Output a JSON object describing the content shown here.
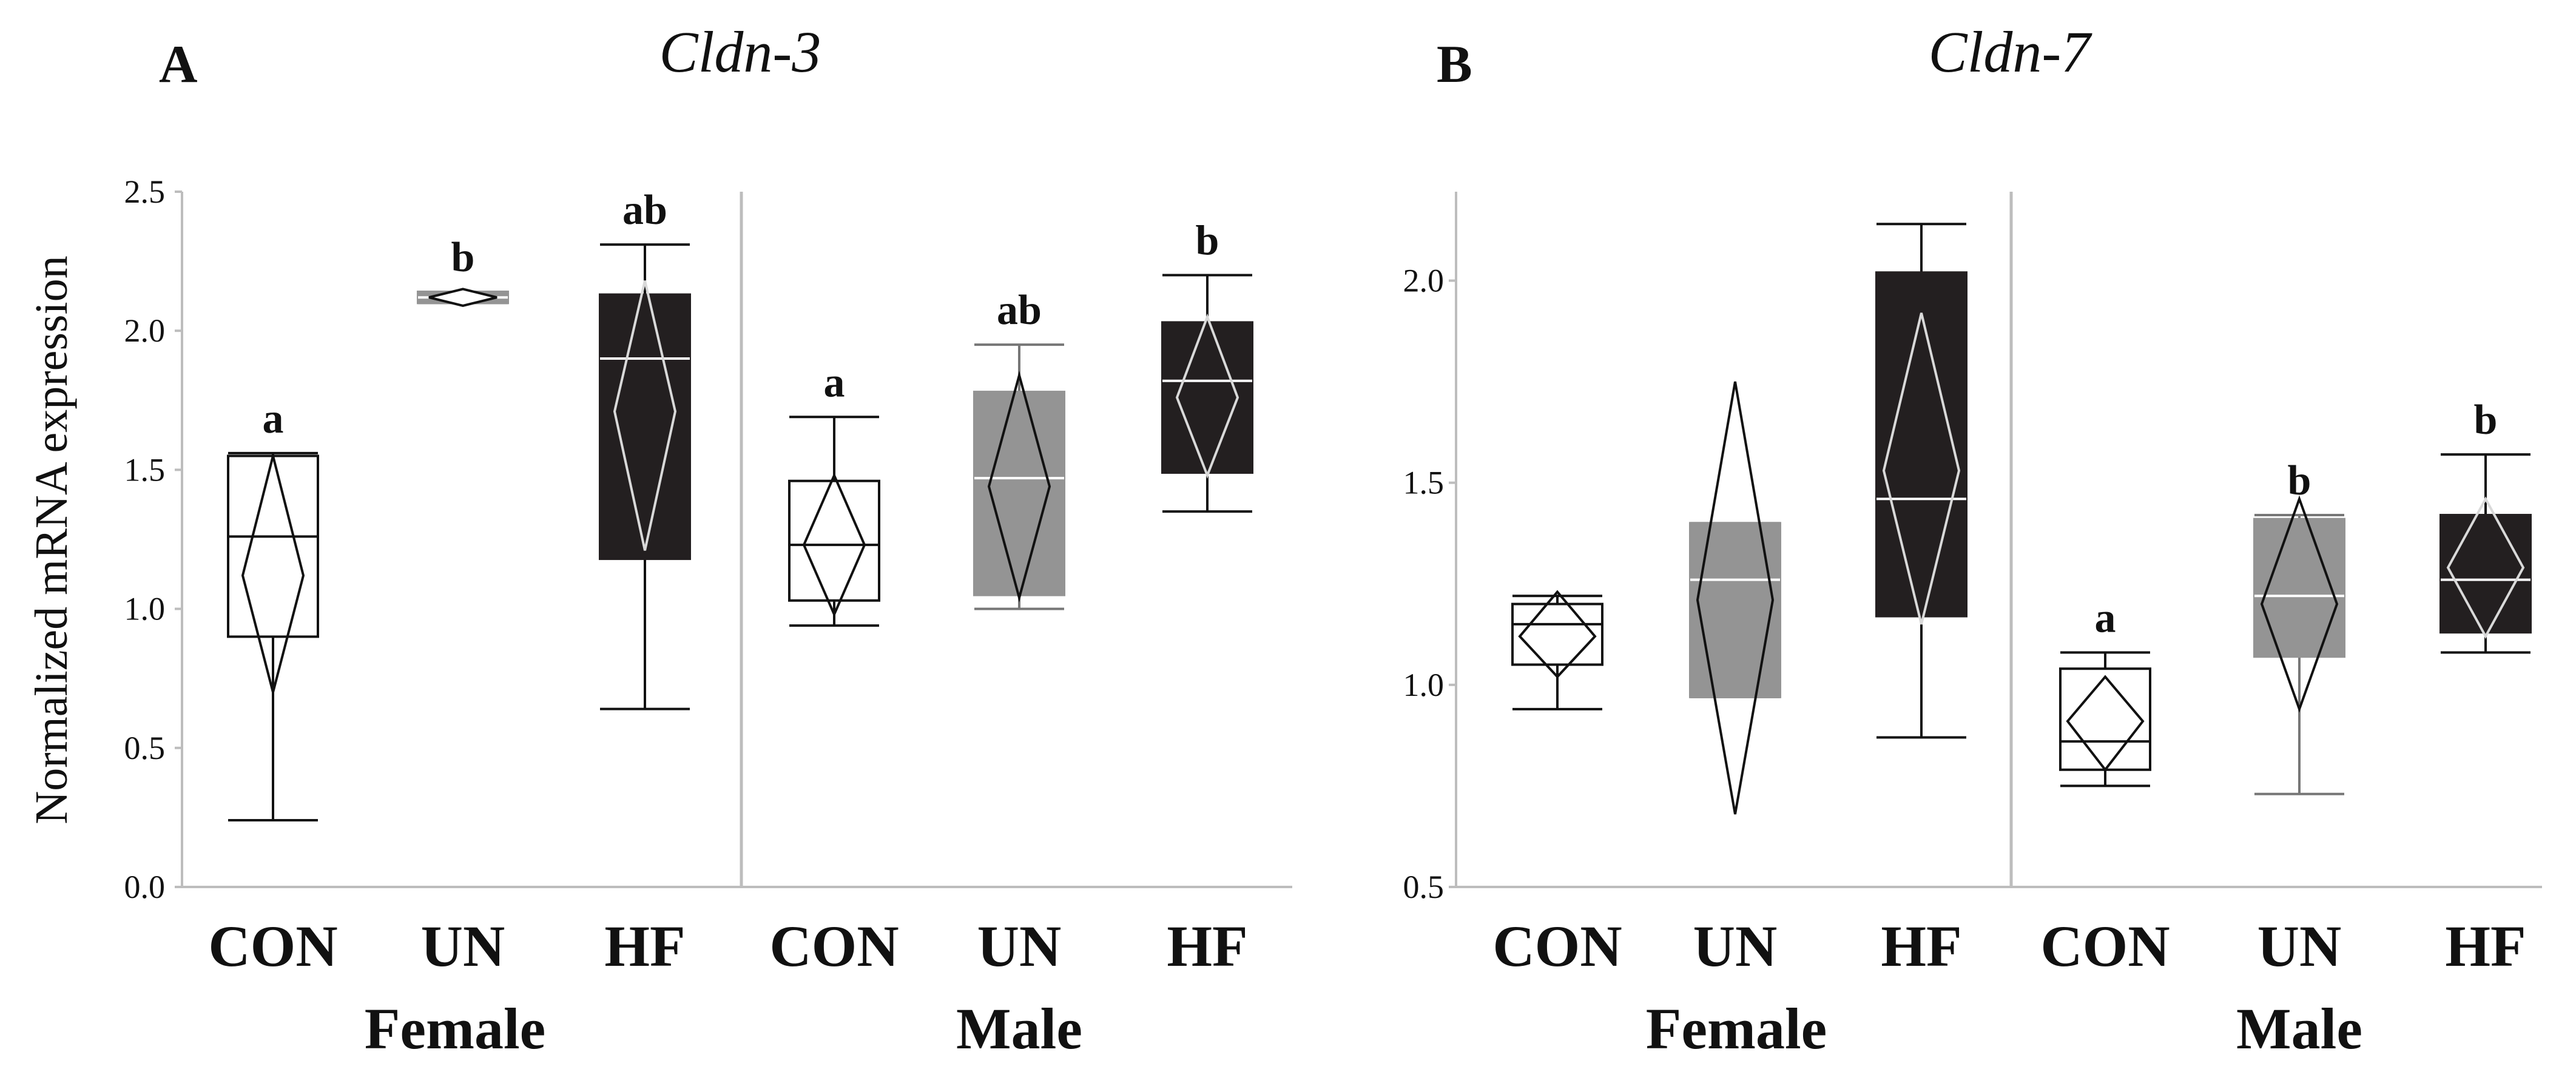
{
  "figure": {
    "ylabel": "Normalized mRNA expression",
    "colors": {
      "CON": "#ffffff",
      "UN": "#949494",
      "HF": "#231f20",
      "axis": "#bdbdbd",
      "ink": "#111111"
    }
  },
  "chart_data": [
    {
      "type": "box",
      "panel": "A",
      "title": "Cldn-3",
      "ylabel": "Normalized mRNA expression",
      "ylim": [
        0.0,
        2.5
      ],
      "yticks": [
        0.0,
        0.5,
        1.0,
        1.5,
        2.0,
        2.5
      ],
      "ytick_labels": [
        "0.0",
        "0.5",
        "1.0",
        "1.5",
        "2.0",
        "2.5"
      ],
      "groups": [
        {
          "name": "Female",
          "categories": [
            "CON",
            "UN",
            "HF"
          ]
        },
        {
          "name": "Male",
          "categories": [
            "CON",
            "UN",
            "HF"
          ]
        }
      ],
      "series": [
        {
          "group": "Female",
          "category": "CON",
          "whisker_low": 0.24,
          "q1": 0.9,
          "median": 1.26,
          "q3": 1.55,
          "whisker_high": 1.56,
          "mean": 1.12,
          "ci_low": 0.7,
          "ci_high": 1.55,
          "sig": "a"
        },
        {
          "group": "Female",
          "category": "UN",
          "whisker_low": 2.1,
          "q1": 2.1,
          "median": 2.12,
          "q3": 2.14,
          "whisker_high": 2.14,
          "mean": 2.12,
          "ci_low": 2.09,
          "ci_high": 2.15,
          "sig": "b"
        },
        {
          "group": "Female",
          "category": "HF",
          "whisker_low": 0.64,
          "q1": 1.18,
          "median": 1.9,
          "q3": 2.13,
          "whisker_high": 2.31,
          "mean": 1.71,
          "ci_low": 1.21,
          "ci_high": 2.18,
          "sig": "ab"
        },
        {
          "group": "Male",
          "category": "CON",
          "whisker_low": 0.94,
          "q1": 1.03,
          "median": 1.23,
          "q3": 1.46,
          "whisker_high": 1.69,
          "mean": 1.23,
          "ci_low": 0.98,
          "ci_high": 1.48,
          "sig": "a"
        },
        {
          "group": "Male",
          "category": "UN",
          "whisker_low": 1.0,
          "q1": 1.05,
          "median": 1.47,
          "q3": 1.78,
          "whisker_high": 1.95,
          "mean": 1.44,
          "ci_low": 1.04,
          "ci_high": 1.84,
          "sig": "ab"
        },
        {
          "group": "Male",
          "category": "HF",
          "whisker_low": 1.35,
          "q1": 1.49,
          "median": 1.82,
          "q3": 2.03,
          "whisker_high": 2.2,
          "mean": 1.76,
          "ci_low": 1.48,
          "ci_high": 2.05,
          "sig": "b"
        }
      ]
    },
    {
      "type": "box",
      "panel": "B",
      "title": "Cldn-7",
      "ylabel": "",
      "ylim": [
        0.5,
        2.22
      ],
      "yticks": [
        0.5,
        1.0,
        1.5,
        2.0
      ],
      "ytick_labels": [
        "0.5",
        "1.0",
        "1.5",
        "2.0"
      ],
      "groups": [
        {
          "name": "Female",
          "categories": [
            "CON",
            "UN",
            "HF"
          ]
        },
        {
          "name": "Male",
          "categories": [
            "CON",
            "UN",
            "HF"
          ]
        }
      ],
      "series": [
        {
          "group": "Female",
          "category": "CON",
          "whisker_low": 0.94,
          "q1": 1.05,
          "median": 1.15,
          "q3": 1.2,
          "whisker_high": 1.22,
          "mean": 1.12,
          "ci_low": 1.02,
          "ci_high": 1.23,
          "sig": ""
        },
        {
          "group": "Female",
          "category": "UN",
          "whisker_low": 0.97,
          "q1": 0.97,
          "median": 1.26,
          "q3": 1.4,
          "whisker_high": 1.4,
          "mean": 1.21,
          "ci_low": 0.68,
          "ci_high": 1.75,
          "sig": ""
        },
        {
          "group": "Female",
          "category": "HF",
          "whisker_low": 0.87,
          "q1": 1.17,
          "median": 1.46,
          "q3": 2.02,
          "whisker_high": 2.14,
          "mean": 1.53,
          "ci_low": 1.15,
          "ci_high": 1.92,
          "sig": ""
        },
        {
          "group": "Male",
          "category": "CON",
          "whisker_low": 0.75,
          "q1": 0.79,
          "median": 0.86,
          "q3": 1.04,
          "whisker_high": 1.08,
          "mean": 0.91,
          "ci_low": 0.79,
          "ci_high": 1.02,
          "sig": "a"
        },
        {
          "group": "Male",
          "category": "UN",
          "whisker_low": 0.73,
          "q1": 1.07,
          "median": 1.22,
          "q3": 1.41,
          "whisker_high": 1.42,
          "mean": 1.2,
          "ci_low": 0.94,
          "ci_high": 1.46,
          "sig": "b"
        },
        {
          "group": "Male",
          "category": "HF",
          "whisker_low": 1.08,
          "q1": 1.13,
          "median": 1.26,
          "q3": 1.42,
          "whisker_high": 1.57,
          "mean": 1.29,
          "ci_low": 1.12,
          "ci_high": 1.46,
          "sig": "b"
        }
      ]
    }
  ]
}
